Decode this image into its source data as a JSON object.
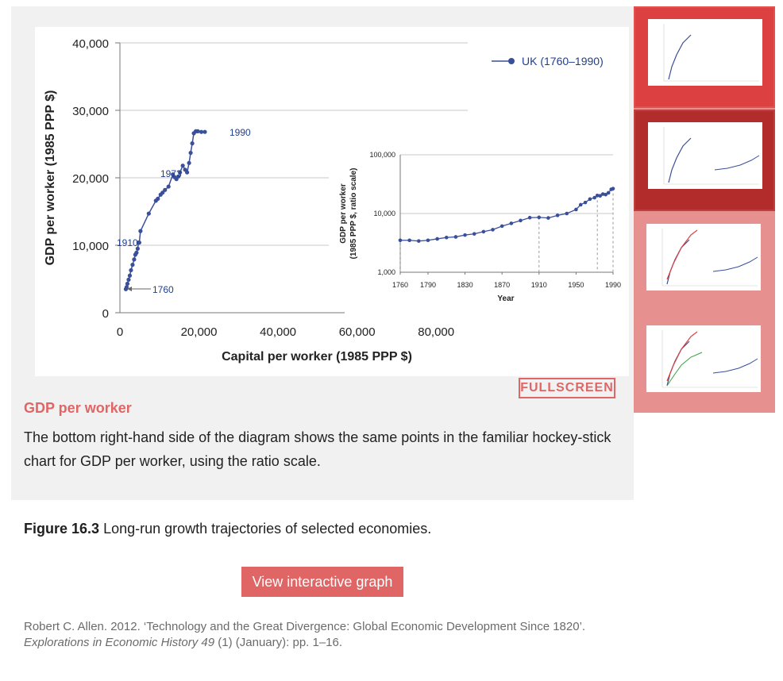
{
  "step": {
    "title": "GDP per worker",
    "text": "The bottom right-hand side of the diagram shows the same points in the familiar hockey-stick chart for GDP per worker, using the ratio scale.",
    "fullscreen_label": "FULLSCREEN"
  },
  "figure": {
    "number": "Figure 16.3",
    "caption": "Long-run growth trajectories of selected economies.",
    "view_label": "View interactive graph",
    "source_prefix": "Robert C. Allen. 2012. ‘Technology and the Great Divergence: Global Economic Development Since 1820’.",
    "source_journal": "Explorations in Economic History 49",
    "source_suffix": "(1) (January): pp. 1–16."
  },
  "colors": {
    "series": "#3a4f9a",
    "accent": "#e06666",
    "panel": "#f1f1f1"
  },
  "chart_data": [
    {
      "type": "line",
      "xlabel": "Capital per worker (1985 PPP $)",
      "ylabel": "GDP per worker (1985 PPP $)",
      "xlim": [
        0,
        88000
      ],
      "ylim": [
        0,
        40000
      ],
      "xticks": [
        "0",
        "20,000",
        "40,000",
        "60,000",
        "80,000"
      ],
      "yticks": [
        "0",
        "10,000",
        "20,000",
        "30,000",
        "40,000"
      ],
      "grid": true,
      "legend": "top-right",
      "series": [
        {
          "name": "UK (1760–1990)",
          "x": [
            1500,
            1700,
            1900,
            2200,
            2500,
            2800,
            3200,
            3600,
            3900,
            4200,
            4500,
            4700,
            4900,
            5200,
            7300,
            9100,
            9600,
            10300,
            10800,
            11400,
            12300,
            13400,
            13800,
            14300,
            14800,
            15200,
            15900,
            16500,
            17000,
            17500,
            17900,
            18300,
            18700,
            19200,
            19700,
            20600,
            21500
          ],
          "y": [
            3500,
            3800,
            4300,
            4900,
            5500,
            6300,
            7100,
            7900,
            8600,
            8900,
            9500,
            10400,
            10400,
            12100,
            14700,
            16600,
            16900,
            17500,
            17800,
            18200,
            18700,
            20500,
            20100,
            19800,
            20200,
            20800,
            21800,
            21200,
            20800,
            22200,
            23700,
            25100,
            26600,
            26900,
            26900,
            26800,
            26800
          ]
        }
      ],
      "annotations": [
        "1760",
        "1910",
        "1973",
        "1990"
      ]
    },
    {
      "type": "line",
      "xlabel": "Year",
      "ylabel": "GDP per worker (1985 PPP $, ratio scale)",
      "ylim": [
        1000,
        100000
      ],
      "log_scale": true,
      "xticks": [
        "1760",
        "1790",
        "1830",
        "1870",
        "1910",
        "1950",
        "1990"
      ],
      "yticks": [
        "1,000",
        "10,000",
        "100,000"
      ],
      "series": [
        {
          "x": [
            1760,
            1770,
            1780,
            1790,
            1800,
            1810,
            1820,
            1830,
            1840,
            1850,
            1860,
            1870,
            1880,
            1890,
            1900,
            1910,
            1920,
            1930,
            1940,
            1950,
            1955,
            1960,
            1965,
            1970,
            1973,
            1976,
            1979,
            1982,
            1985,
            1988,
            1990
          ],
          "y": [
            3500,
            3500,
            3400,
            3500,
            3700,
            3900,
            4000,
            4300,
            4500,
            4900,
            5300,
            6100,
            6800,
            7600,
            8500,
            8600,
            8400,
            9300,
            10000,
            11700,
            14100,
            15400,
            17600,
            18600,
            20300,
            20000,
            21400,
            21000,
            22500,
            25800,
            26500
          ]
        }
      ]
    }
  ]
}
